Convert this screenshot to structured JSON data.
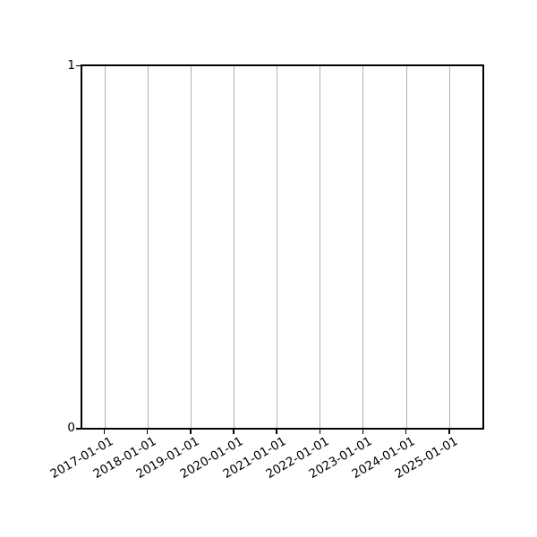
{
  "chart_data": {
    "type": "line",
    "title": "",
    "xlabel": "",
    "ylabel": "",
    "series": [],
    "x_tick_labels": [
      "2017-01-01",
      "2018-01-01",
      "2019-01-01",
      "2020-01-01",
      "2021-01-01",
      "2022-01-01",
      "2023-01-01",
      "2024-01-01",
      "2025-01-01"
    ],
    "y_tick_labels": [
      "0",
      "1"
    ],
    "ylim": [
      0,
      1
    ],
    "grid": "vertical-gridlines-at-each-year",
    "legend": "none",
    "x_tick_rotation_deg": 30
  },
  "colors": {
    "background": "#ffffff",
    "spine": "#000000",
    "grid": "#b0b0b0",
    "tick_label": "#000000"
  }
}
